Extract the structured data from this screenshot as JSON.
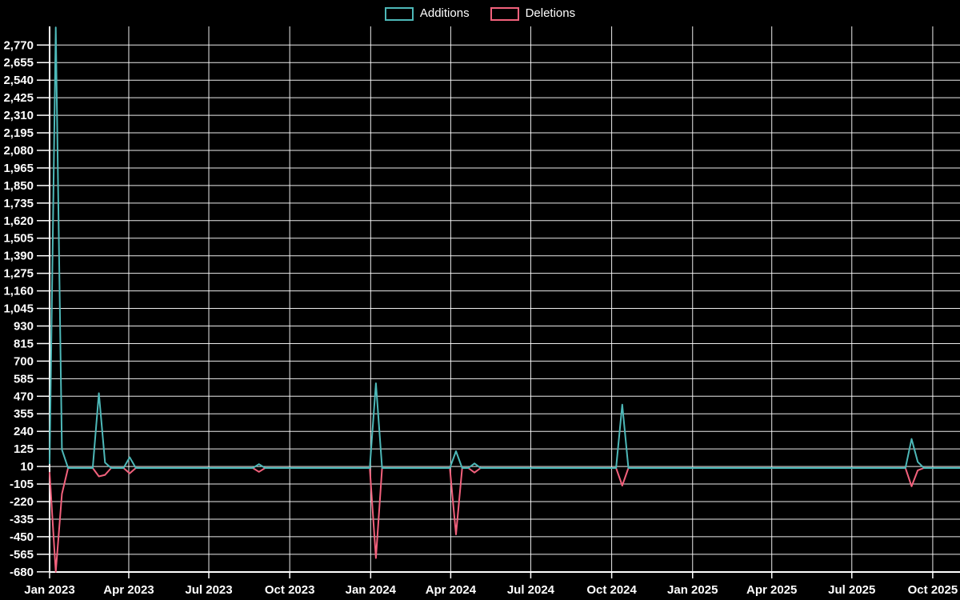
{
  "legend": {
    "items": [
      {
        "label": "Additions",
        "color": "#4DB8B8"
      },
      {
        "label": "Deletions",
        "color": "#F2617C"
      }
    ]
  },
  "chart_data": {
    "type": "line",
    "title": "",
    "xlabel": "",
    "ylabel": "",
    "background": "#000000",
    "grid_color": "#FFFFFF",
    "axis_color": "#FFFFFF",
    "label_color": "#FFFFFF",
    "legend_position": "top-center",
    "grid": true,
    "x_axis": {
      "domain": [
        "2023-01-01",
        "2025-11-01"
      ],
      "ticks": [
        {
          "date": "2023-01-01",
          "label": "Jan 2023"
        },
        {
          "date": "2023-04-01",
          "label": "Apr 2023"
        },
        {
          "date": "2023-07-01",
          "label": "Jul 2023"
        },
        {
          "date": "2023-10-01",
          "label": "Oct 2023"
        },
        {
          "date": "2024-01-01",
          "label": "Jan 2024"
        },
        {
          "date": "2024-04-01",
          "label": "Apr 2024"
        },
        {
          "date": "2024-07-01",
          "label": "Jul 2024"
        },
        {
          "date": "2024-10-01",
          "label": "Oct 2024"
        },
        {
          "date": "2025-01-01",
          "label": "Jan 2025"
        },
        {
          "date": "2025-04-01",
          "label": "Apr 2025"
        },
        {
          "date": "2025-07-01",
          "label": "Jul 2025"
        },
        {
          "date": "2025-10-01",
          "label": "Oct 2025"
        }
      ]
    },
    "y_axis": {
      "ylim": [
        -691,
        2890
      ],
      "tick_step": 115,
      "ticks": [
        -680,
        -565,
        -450,
        -335,
        -220,
        -105,
        10,
        125,
        240,
        355,
        470,
        585,
        700,
        815,
        930,
        1045,
        1160,
        1275,
        1390,
        1505,
        1620,
        1735,
        1850,
        1965,
        2080,
        2195,
        2310,
        2425,
        2540,
        2655,
        2770
      ]
    },
    "series": [
      {
        "name": "Additions",
        "color": "#4DB8B8",
        "points": [
          [
            "2023-01-01",
            30
          ],
          [
            "2023-01-08",
            2885
          ],
          [
            "2023-01-15",
            120
          ],
          [
            "2023-01-22",
            0
          ],
          [
            "2023-02-19",
            0
          ],
          [
            "2023-02-26",
            490
          ],
          [
            "2023-03-05",
            35
          ],
          [
            "2023-03-12",
            0
          ],
          [
            "2023-03-26",
            0
          ],
          [
            "2023-04-02",
            70
          ],
          [
            "2023-04-09",
            0
          ],
          [
            "2023-08-20",
            0
          ],
          [
            "2023-08-27",
            25
          ],
          [
            "2023-09-03",
            0
          ],
          [
            "2023-12-31",
            0
          ],
          [
            "2024-01-07",
            555
          ],
          [
            "2024-01-14",
            0
          ],
          [
            "2024-03-31",
            0
          ],
          [
            "2024-04-07",
            110
          ],
          [
            "2024-04-14",
            0
          ],
          [
            "2024-04-21",
            0
          ],
          [
            "2024-04-28",
            30
          ],
          [
            "2024-05-05",
            0
          ],
          [
            "2024-10-06",
            0
          ],
          [
            "2024-10-13",
            415
          ],
          [
            "2024-10-20",
            0
          ],
          [
            "2025-08-31",
            0
          ],
          [
            "2025-09-07",
            190
          ],
          [
            "2025-09-14",
            40
          ],
          [
            "2025-09-21",
            0
          ],
          [
            "2025-11-01",
            0
          ]
        ]
      },
      {
        "name": "Deletions",
        "color": "#F2617C",
        "points": [
          [
            "2023-01-01",
            -30
          ],
          [
            "2023-01-08",
            -680
          ],
          [
            "2023-01-15",
            -170
          ],
          [
            "2023-01-22",
            0
          ],
          [
            "2023-02-19",
            0
          ],
          [
            "2023-02-26",
            -55
          ],
          [
            "2023-03-05",
            -45
          ],
          [
            "2023-03-12",
            0
          ],
          [
            "2023-03-26",
            0
          ],
          [
            "2023-04-02",
            -35
          ],
          [
            "2023-04-09",
            0
          ],
          [
            "2023-08-20",
            0
          ],
          [
            "2023-08-27",
            -25
          ],
          [
            "2023-09-03",
            0
          ],
          [
            "2023-12-31",
            0
          ],
          [
            "2024-01-07",
            -590
          ],
          [
            "2024-01-14",
            0
          ],
          [
            "2024-03-31",
            0
          ],
          [
            "2024-04-07",
            -435
          ],
          [
            "2024-04-14",
            0
          ],
          [
            "2024-04-21",
            0
          ],
          [
            "2024-04-28",
            -30
          ],
          [
            "2024-05-05",
            0
          ],
          [
            "2024-10-06",
            0
          ],
          [
            "2024-10-13",
            -115
          ],
          [
            "2024-10-20",
            0
          ],
          [
            "2025-08-31",
            0
          ],
          [
            "2025-09-07",
            -120
          ],
          [
            "2025-09-14",
            -15
          ],
          [
            "2025-09-21",
            0
          ],
          [
            "2025-11-01",
            0
          ]
        ]
      }
    ]
  }
}
